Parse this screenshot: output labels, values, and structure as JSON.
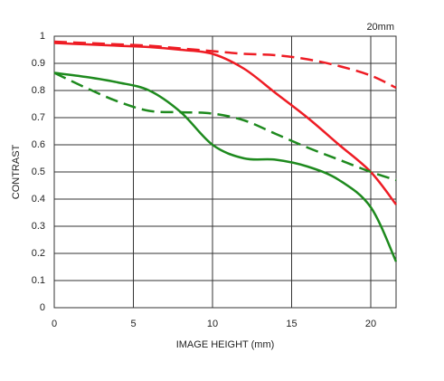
{
  "chart_data": {
    "type": "line",
    "title": "20mm",
    "x_label": "IMAGE HEIGHT (mm)",
    "y_label": "CONTRAST",
    "x": [
      0,
      2,
      4,
      6,
      8,
      10,
      12,
      14,
      16,
      18,
      20,
      21.6
    ],
    "series": [
      {
        "color": "#ee1c24",
        "dashed": false,
        "values": [
          0.975,
          0.97,
          0.965,
          0.96,
          0.95,
          0.935,
          0.88,
          0.79,
          0.7,
          0.6,
          0.5,
          0.38
        ]
      },
      {
        "color": "#ee1c24",
        "dashed": true,
        "values": [
          0.98,
          0.975,
          0.97,
          0.965,
          0.955,
          0.945,
          0.935,
          0.93,
          0.915,
          0.89,
          0.855,
          0.81
        ]
      },
      {
        "color": "#1e8a1e",
        "dashed": false,
        "values": [
          0.865,
          0.85,
          0.83,
          0.8,
          0.72,
          0.6,
          0.55,
          0.545,
          0.52,
          0.47,
          0.37,
          0.17
        ]
      },
      {
        "color": "#1e8a1e",
        "dashed": true,
        "values": [
          0.865,
          0.81,
          0.76,
          0.725,
          0.72,
          0.715,
          0.69,
          0.64,
          0.59,
          0.545,
          0.5,
          0.47
        ]
      }
    ],
    "xlim": [
      0,
      21.6
    ],
    "ylim": [
      0,
      1
    ],
    "xticks": [
      0,
      5,
      10,
      15,
      20
    ],
    "yticks": [
      0,
      0.1,
      0.2,
      0.3,
      0.4,
      0.5,
      0.6,
      0.7,
      0.8,
      0.9,
      1
    ],
    "grid": true
  }
}
